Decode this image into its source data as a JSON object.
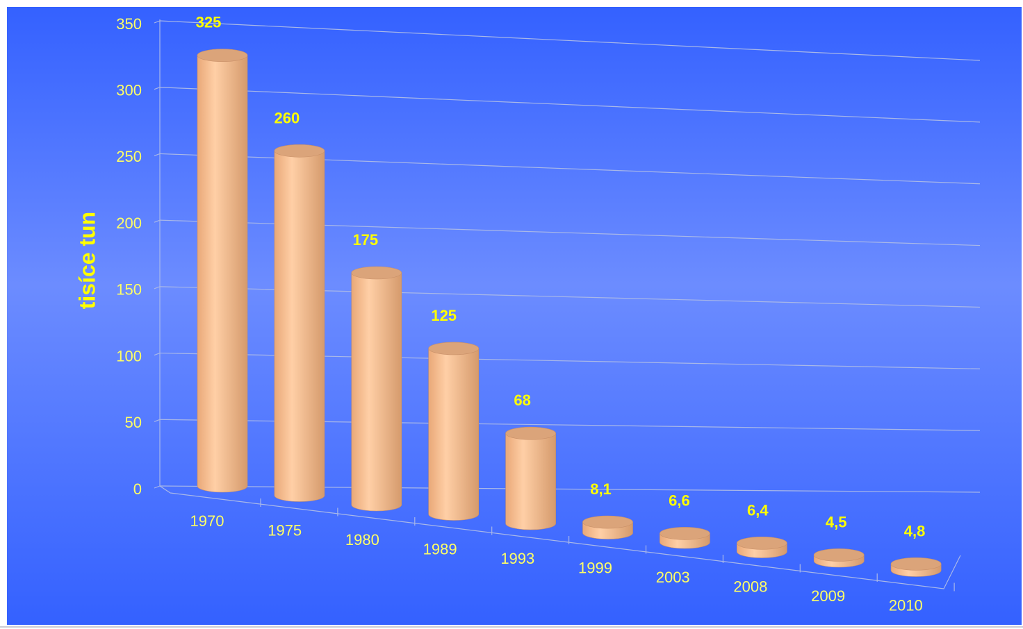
{
  "chart_data": {
    "type": "bar3d",
    "y_label": "tisíce tun",
    "categories": [
      "1970",
      "1975",
      "1980",
      "1989",
      "1993",
      "1999",
      "2003",
      "2008",
      "2009",
      "2010"
    ],
    "values": [
      325,
      260,
      175,
      125,
      68,
      8.1,
      6.6,
      6.4,
      4.5,
      4.8
    ],
    "value_labels": [
      "325",
      "260",
      "175",
      "125",
      "68",
      "8,1",
      "6,6",
      "6,4",
      "4,5",
      "4,8"
    ],
    "color": "#f5bd8c",
    "ylim": [
      0,
      350
    ],
    "yticks": [
      0,
      50,
      100,
      150,
      200,
      250,
      300,
      350
    ],
    "grid": true
  }
}
